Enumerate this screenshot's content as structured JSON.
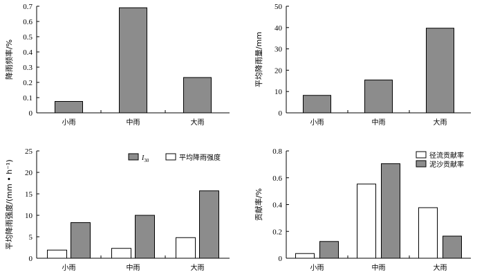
{
  "styles": {
    "gray": "#8c8c8c",
    "white": "#ffffff",
    "stroke": "#000000"
  },
  "chart_data": [
    {
      "id": "c1",
      "type": "bar",
      "categories": [
        "小雨",
        "中雨",
        "大雨"
      ],
      "series": [
        {
          "name": "",
          "fill": "gray",
          "values": [
            0.075,
            0.69,
            0.232
          ]
        }
      ],
      "ylabel": "降雨频率/%",
      "ylim": [
        0,
        0.7
      ],
      "yticks": [
        0,
        0.1,
        0.2,
        0.3,
        0.4,
        0.5,
        0.6,
        0.7
      ],
      "ytick_labels": [
        "0",
        "0.1",
        "0.2",
        "0.3",
        "0.4",
        "0.5",
        "0.6",
        "0.7"
      ],
      "legend": []
    },
    {
      "id": "c2",
      "type": "bar",
      "categories": [
        "小雨",
        "中雨",
        "大雨"
      ],
      "series": [
        {
          "name": "",
          "fill": "gray",
          "values": [
            8.2,
            15.4,
            39.7
          ]
        }
      ],
      "ylabel": "平均降雨量/mm",
      "ylim": [
        0,
        50
      ],
      "yticks": [
        0,
        10,
        20,
        30,
        40,
        50
      ],
      "ytick_labels": [
        "0",
        "10",
        "20",
        "30",
        "40",
        "50"
      ],
      "legend": []
    },
    {
      "id": "c3",
      "type": "bar",
      "categories": [
        "小雨",
        "中雨",
        "大雨"
      ],
      "series": [
        {
          "name": "平均降雨强度",
          "fill": "white",
          "values": [
            1.9,
            2.3,
            4.8
          ]
        },
        {
          "name": "I30",
          "fill": "gray",
          "values": [
            8.3,
            10.0,
            15.7
          ]
        }
      ],
      "ylabel": "平均降雨强度/(mm • h⁻¹)",
      "ylim": [
        0,
        25
      ],
      "yticks": [
        0,
        5,
        10,
        15,
        20,
        25
      ],
      "ytick_labels": [
        "0",
        "5",
        "10",
        "15",
        "20",
        "25"
      ],
      "legend": [
        {
          "label_main": "I",
          "label_sub": "30",
          "fill": "gray"
        },
        {
          "label_main": "平均降雨强度",
          "label_sub": "",
          "fill": "white"
        }
      ]
    },
    {
      "id": "c4",
      "type": "bar",
      "categories": [
        "小雨",
        "中雨",
        "大雨"
      ],
      "series": [
        {
          "name": "径流贡献率",
          "fill": "white",
          "values": [
            0.035,
            0.553,
            0.377
          ]
        },
        {
          "name": "泥沙贡献率",
          "fill": "gray",
          "values": [
            0.125,
            0.705,
            0.165
          ]
        }
      ],
      "ylabel": "贡献率/%",
      "ylim": [
        0,
        0.8
      ],
      "yticks": [
        0,
        0.2,
        0.4,
        0.6,
        0.8
      ],
      "ytick_labels": [
        "0",
        "0.2",
        "0.4",
        "0.6",
        "0.8"
      ],
      "legend": [
        {
          "label_main": "径流贡献率",
          "label_sub": "",
          "fill": "white"
        },
        {
          "label_main": "泥沙贡献率",
          "label_sub": "",
          "fill": "gray"
        }
      ]
    }
  ]
}
